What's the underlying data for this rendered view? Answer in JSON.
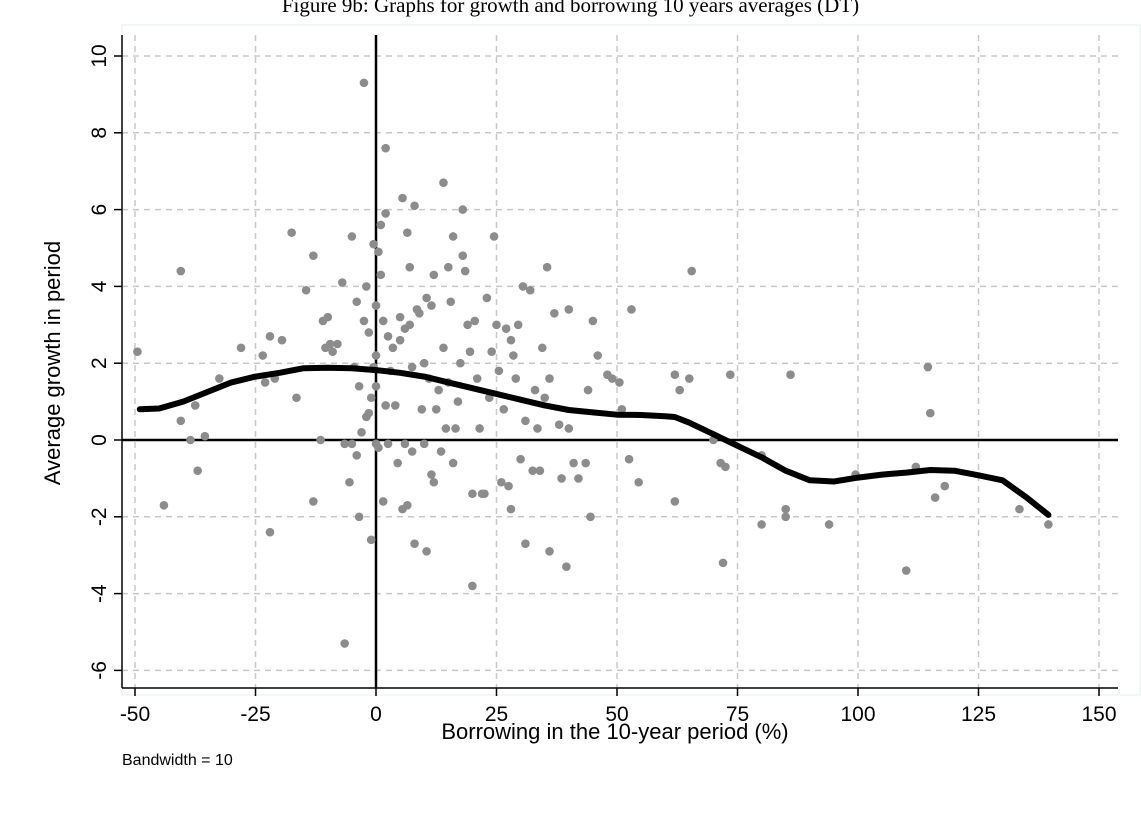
{
  "figure_title": "Figure 9b: Graphs for growth and borrowing 10 years averages (DT)",
  "note": "Bandwidth = 10",
  "chart_data": {
    "type": "scatter",
    "title": "Figure 9b: Graphs for growth and borrowing 10 years averages (DT)",
    "xlabel": "Borrowing in the 10-year period (%)",
    "ylabel": "Average growth in period",
    "xlim": [
      -52,
      154
    ],
    "ylim": [
      -6.4,
      10.5
    ],
    "x_ticks": [
      -50,
      -25,
      0,
      25,
      50,
      75,
      100,
      125,
      150
    ],
    "x_tick_labels": [
      "-50",
      "-25",
      "0",
      "25",
      "50",
      "75",
      "100",
      "125",
      "150"
    ],
    "y_ticks": [
      -6,
      -4,
      -2,
      0,
      2,
      4,
      6,
      8,
      10
    ],
    "y_tick_labels": [
      "-6",
      "-4",
      "-2",
      "0",
      "2",
      "4",
      "6",
      "8",
      "10"
    ],
    "grid": true,
    "reference_lines": {
      "x": 0,
      "y": 0
    },
    "colors": {
      "points": "#8c8c8c",
      "smooth": "#000000",
      "grid": "#c8c8c8"
    },
    "scatter_points": [
      [
        -49.5,
        2.3
      ],
      [
        -44,
        -1.7
      ],
      [
        -40.5,
        4.4
      ],
      [
        -40.5,
        0.5
      ],
      [
        -38.5,
        0.0
      ],
      [
        -37.5,
        0.9
      ],
      [
        -37,
        -0.8
      ],
      [
        -35.5,
        0.1
      ],
      [
        -32.5,
        1.6
      ],
      [
        -28,
        2.4
      ],
      [
        -23.5,
        2.2
      ],
      [
        -23,
        1.5
      ],
      [
        -22,
        -2.4
      ],
      [
        -22,
        2.7
      ],
      [
        -21,
        1.6
      ],
      [
        -19.5,
        2.6
      ],
      [
        -17.5,
        5.4
      ],
      [
        -16.5,
        1.1
      ],
      [
        -14.5,
        3.9
      ],
      [
        -13,
        -1.6
      ],
      [
        -13,
        4.8
      ],
      [
        -11.5,
        0.0
      ],
      [
        -11,
        3.1
      ],
      [
        -10.5,
        2.4
      ],
      [
        -10,
        3.2
      ],
      [
        -9.5,
        2.5
      ],
      [
        -9,
        2.3
      ],
      [
        -8,
        2.5
      ],
      [
        -7,
        4.1
      ],
      [
        -6.5,
        -5.3
      ],
      [
        -6.5,
        -0.1
      ],
      [
        -5.5,
        -1.1
      ],
      [
        -5,
        5.3
      ],
      [
        -5,
        -0.1
      ],
      [
        -4.5,
        1.9
      ],
      [
        -4,
        -0.4
      ],
      [
        -4,
        3.6
      ],
      [
        -3.5,
        -2.0
      ],
      [
        -3.5,
        1.4
      ],
      [
        -3,
        0.2
      ],
      [
        -2.5,
        3.1
      ],
      [
        -2.5,
        9.3
      ],
      [
        -2,
        0.6
      ],
      [
        -2,
        4.0
      ],
      [
        -1.5,
        0.7
      ],
      [
        -1.5,
        2.8
      ],
      [
        -1,
        1.1
      ],
      [
        -1,
        -2.6
      ],
      [
        -0.5,
        1.9
      ],
      [
        -0.5,
        5.1
      ],
      [
        0,
        3.5
      ],
      [
        0,
        -0.1
      ],
      [
        0,
        1.4
      ],
      [
        0,
        2.2
      ],
      [
        0.5,
        4.9
      ],
      [
        0.5,
        -0.2
      ],
      [
        1,
        4.3
      ],
      [
        1,
        5.6
      ],
      [
        1.5,
        3.1
      ],
      [
        1.5,
        -1.6
      ],
      [
        2,
        0.9
      ],
      [
        2,
        5.9
      ],
      [
        2,
        7.6
      ],
      [
        2.5,
        2.7
      ],
      [
        2.5,
        -0.1
      ],
      [
        3,
        1.8
      ],
      [
        3.5,
        2.4
      ],
      [
        4,
        0.9
      ],
      [
        4.5,
        -0.6
      ],
      [
        5,
        2.6
      ],
      [
        5,
        3.2
      ],
      [
        5.5,
        -1.8
      ],
      [
        5.5,
        6.3
      ],
      [
        6,
        2.9
      ],
      [
        6,
        -0.1
      ],
      [
        6.5,
        5.4
      ],
      [
        6.5,
        -1.7
      ],
      [
        7,
        4.5
      ],
      [
        7,
        3.0
      ],
      [
        7.5,
        -0.3
      ],
      [
        7.5,
        1.9
      ],
      [
        8,
        -2.7
      ],
      [
        8,
        6.1
      ],
      [
        8.5,
        3.4
      ],
      [
        9,
        3.3
      ],
      [
        9.5,
        0.8
      ],
      [
        10,
        -0.1
      ],
      [
        10,
        2.0
      ],
      [
        10.5,
        3.7
      ],
      [
        10.5,
        -2.9
      ],
      [
        11,
        1.6
      ],
      [
        11.5,
        3.5
      ],
      [
        11.5,
        -0.9
      ],
      [
        12,
        -1.1
      ],
      [
        12,
        4.3
      ],
      [
        12.5,
        0.8
      ],
      [
        13,
        1.3
      ],
      [
        13.5,
        -0.3
      ],
      [
        14,
        6.7
      ],
      [
        14,
        2.4
      ],
      [
        14.5,
        0.3
      ],
      [
        15,
        1.5
      ],
      [
        15,
        4.5
      ],
      [
        15.5,
        3.6
      ],
      [
        16,
        5.3
      ],
      [
        16,
        -0.6
      ],
      [
        16.5,
        0.3
      ],
      [
        17,
        1.0
      ],
      [
        17.5,
        2.0
      ],
      [
        18,
        4.8
      ],
      [
        18,
        6.0
      ],
      [
        18.5,
        4.4
      ],
      [
        19,
        3.0
      ],
      [
        19.5,
        2.3
      ],
      [
        20,
        -1.4
      ],
      [
        20,
        -3.8
      ],
      [
        20.5,
        3.1
      ],
      [
        21,
        1.6
      ],
      [
        21.5,
        0.3
      ],
      [
        22,
        -1.4
      ],
      [
        22.5,
        -1.4
      ],
      [
        23,
        3.7
      ],
      [
        23.5,
        1.1
      ],
      [
        24,
        2.3
      ],
      [
        24.5,
        5.3
      ],
      [
        25,
        3.0
      ],
      [
        25.5,
        1.8
      ],
      [
        26,
        -1.1
      ],
      [
        26.5,
        0.8
      ],
      [
        27,
        2.9
      ],
      [
        27.5,
        -1.2
      ],
      [
        28,
        2.6
      ],
      [
        28,
        -1.8
      ],
      [
        28.5,
        2.2
      ],
      [
        29,
        1.6
      ],
      [
        29.5,
        3.0
      ],
      [
        30,
        -0.5
      ],
      [
        30.5,
        4.0
      ],
      [
        31,
        0.5
      ],
      [
        31,
        -2.7
      ],
      [
        32,
        3.9
      ],
      [
        32.5,
        -0.8
      ],
      [
        33,
        1.3
      ],
      [
        33.5,
        0.3
      ],
      [
        34,
        -0.8
      ],
      [
        34.5,
        2.4
      ],
      [
        35,
        1.1
      ],
      [
        35.5,
        4.5
      ],
      [
        36,
        -2.9
      ],
      [
        36,
        1.6
      ],
      [
        37,
        3.3
      ],
      [
        38,
        0.4
      ],
      [
        38.5,
        -1.0
      ],
      [
        39.5,
        -3.3
      ],
      [
        40,
        3.4
      ],
      [
        40,
        0.3
      ],
      [
        41,
        -0.6
      ],
      [
        42,
        -1.0
      ],
      [
        43.5,
        -0.6
      ],
      [
        44,
        1.3
      ],
      [
        44.5,
        -2.0
      ],
      [
        45,
        3.1
      ],
      [
        46,
        2.2
      ],
      [
        48,
        1.7
      ],
      [
        49,
        1.6
      ],
      [
        50.5,
        1.5
      ],
      [
        51,
        0.8
      ],
      [
        52.5,
        -0.5
      ],
      [
        53,
        3.4
      ],
      [
        54.5,
        -1.1
      ],
      [
        62,
        1.7
      ],
      [
        62,
        -1.6
      ],
      [
        63,
        1.3
      ],
      [
        65,
        1.6
      ],
      [
        65.5,
        4.4
      ],
      [
        70,
        0.0
      ],
      [
        71.5,
        -0.6
      ],
      [
        72,
        -3.2
      ],
      [
        72.5,
        -0.7
      ],
      [
        73.5,
        1.7
      ],
      [
        80,
        -0.4
      ],
      [
        80,
        -2.2
      ],
      [
        85,
        -2.0
      ],
      [
        85,
        -1.8
      ],
      [
        86,
        1.7
      ],
      [
        94,
        -2.2
      ],
      [
        99.5,
        -0.9
      ],
      [
        110,
        -3.4
      ],
      [
        112,
        -0.7
      ],
      [
        114.5,
        1.9
      ],
      [
        115,
        0.7
      ],
      [
        116,
        -1.5
      ],
      [
        118,
        -1.2
      ],
      [
        133.5,
        -1.8
      ],
      [
        139.5,
        -2.2
      ]
    ],
    "smooth_line": [
      [
        -49,
        0.8
      ],
      [
        -45,
        0.82
      ],
      [
        -40,
        1.0
      ],
      [
        -35,
        1.25
      ],
      [
        -30,
        1.5
      ],
      [
        -25,
        1.65
      ],
      [
        -20,
        1.75
      ],
      [
        -15,
        1.87
      ],
      [
        -10,
        1.88
      ],
      [
        -5,
        1.87
      ],
      [
        0,
        1.82
      ],
      [
        5,
        1.75
      ],
      [
        10,
        1.65
      ],
      [
        15,
        1.5
      ],
      [
        20,
        1.35
      ],
      [
        25,
        1.2
      ],
      [
        30,
        1.05
      ],
      [
        35,
        0.9
      ],
      [
        40,
        0.78
      ],
      [
        45,
        0.72
      ],
      [
        50,
        0.66
      ],
      [
        55,
        0.65
      ],
      [
        60,
        0.62
      ],
      [
        62,
        0.6
      ],
      [
        65,
        0.45
      ],
      [
        70,
        0.15
      ],
      [
        75,
        -0.15
      ],
      [
        80,
        -0.45
      ],
      [
        85,
        -0.8
      ],
      [
        90,
        -1.05
      ],
      [
        95,
        -1.08
      ],
      [
        100,
        -0.98
      ],
      [
        105,
        -0.9
      ],
      [
        110,
        -0.85
      ],
      [
        115,
        -0.78
      ],
      [
        120,
        -0.8
      ],
      [
        125,
        -0.92
      ],
      [
        130,
        -1.05
      ],
      [
        135,
        -1.5
      ],
      [
        139.5,
        -1.95
      ]
    ]
  }
}
